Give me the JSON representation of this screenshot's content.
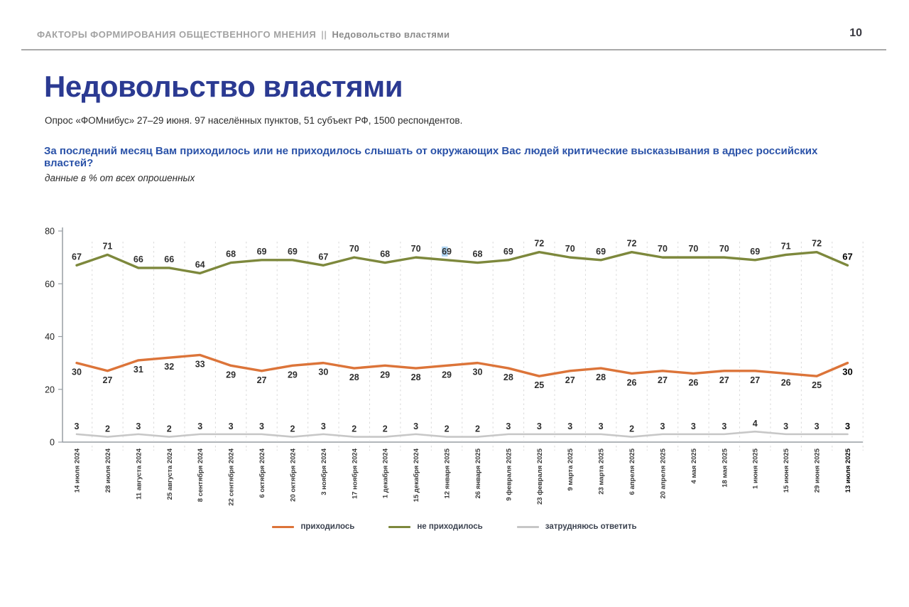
{
  "header": {
    "breadcrumb_section": "ФАКТОРЫ ФОРМИРОВАНИЯ ОБЩЕСТВЕННОГО МНЕНИЯ",
    "separator": "||",
    "breadcrumb_page": "Недовольство властями",
    "page_number": "10"
  },
  "title": "Недовольство властями",
  "subtitle": "Опрос «ФОМнибус» 27–29 июня. 97 населённых пунктов, 51 субъект РФ, 1500 респондентов.",
  "question": "За последний месяц Вам приходилось или не приходилось слышать от окружающих Вас людей критические высказывания в адрес российских властей?",
  "note": "данные в % от всех опрошенных",
  "colors": {
    "title_blue": "#2b3a92",
    "question_blue": "#2a52a8",
    "orange": "#dc7439",
    "olive": "#7d883c",
    "gray_line": "#c7c7c7",
    "axis": "#979da3",
    "grid": "#d9d9d9",
    "label_dark": "#2e2e2e",
    "label_last": "#000000",
    "highlight_selection": "#aed3f0"
  },
  "chart_data": {
    "type": "line",
    "title": "",
    "xlabel": "",
    "ylabel": "",
    "ylim": [
      0,
      80
    ],
    "yticks": [
      0,
      20,
      40,
      60,
      80
    ],
    "grid": "vertical-dashed",
    "legend_position": "bottom",
    "categories": [
      "14 июля 2024",
      "28 июля 2024",
      "11 августа 2024",
      "25 августа 2024",
      "8 сентября 2024",
      "22 сентября 2024",
      "6 октября 2024",
      "20 октября 2024",
      "3 ноября 2024",
      "17 ноября 2024",
      "1 декабря 2024",
      "15 декабря 2024",
      "12 января 2025",
      "26 января 2025",
      "9 февраля 2025",
      "23 февраля 2025",
      "9 марта 2025",
      "23 марта 2025",
      "6 апреля 2025",
      "20 апреля 2025",
      "4 мая 2025",
      "18 мая 2025",
      "1 июня 2025",
      "15 июня 2025",
      "29 июня 2025",
      "13 июля 2025"
    ],
    "series": [
      {
        "name": "приходилось",
        "color": "#dc7439",
        "values": [
          30,
          27,
          31,
          32,
          33,
          29,
          27,
          29,
          30,
          28,
          29,
          28,
          29,
          30,
          28,
          25,
          27,
          28,
          26,
          27,
          26,
          27,
          27,
          26,
          25,
          30
        ]
      },
      {
        "name": "не приходилось",
        "color": "#7d883c",
        "values": [
          67,
          71,
          66,
          66,
          64,
          68,
          69,
          69,
          67,
          70,
          68,
          70,
          69,
          68,
          69,
          72,
          70,
          69,
          72,
          70,
          70,
          70,
          69,
          71,
          72,
          67
        ]
      },
      {
        "name": "затрудняюсь ответить",
        "color": "#c7c7c7",
        "values": [
          3,
          2,
          3,
          2,
          3,
          3,
          3,
          2,
          3,
          2,
          2,
          3,
          2,
          2,
          3,
          3,
          3,
          3,
          2,
          3,
          3,
          3,
          4,
          3,
          3,
          3
        ]
      }
    ],
    "highlight": {
      "series_index": 1,
      "point_index": 12
    }
  }
}
